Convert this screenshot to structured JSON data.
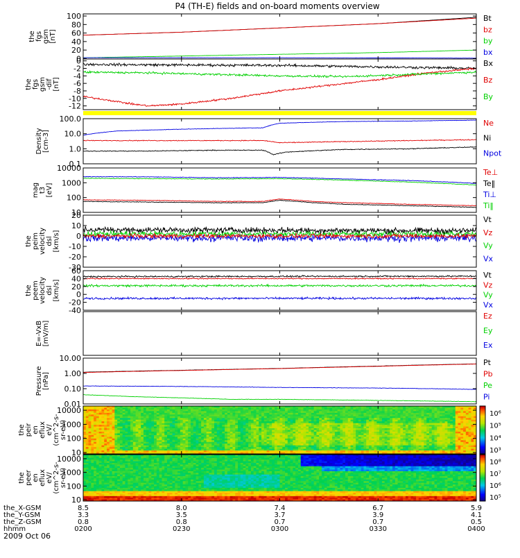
{
  "title": "P4 (TH-E) fields and on-board moments overview",
  "date_label": "2009 Oct 06",
  "colors": {
    "black": "#000000",
    "red": "#e00000",
    "green": "#00d000",
    "blue": "#0000e0",
    "yellow": "#ffff00",
    "frame": "#000000"
  },
  "chart_data": [
    {
      "type": "line",
      "id": "panel-fgs-gsm",
      "ylabel": [
        "the",
        "fgs",
        "gsm",
        "[nT]"
      ],
      "ylim": [
        -1,
        105
      ],
      "log": false,
      "yticks": [
        0,
        20,
        40,
        60,
        80,
        100
      ],
      "ytick_labels": [
        "0",
        "20",
        "40",
        "60",
        "80",
        "100"
      ],
      "legend": [
        {
          "label": "Bt",
          "color": "#000000"
        },
        {
          "label": "bz",
          "color": "#e00000"
        },
        {
          "label": "by",
          "color": "#00d000"
        },
        {
          "label": "bx",
          "color": "#0000e0"
        }
      ],
      "series": [
        {
          "color": "#000000",
          "x": [
            0,
            30,
            60,
            90,
            120
          ],
          "y": [
            55,
            62,
            72,
            82,
            97
          ],
          "noise": 0.2
        },
        {
          "color": "#e00000",
          "x": [
            0,
            30,
            60,
            90,
            120
          ],
          "y": [
            55,
            62,
            72,
            82,
            95
          ],
          "noise": 0.2
        },
        {
          "color": "#00d000",
          "x": [
            0,
            30,
            60,
            90,
            120
          ],
          "y": [
            2,
            6,
            10,
            14,
            20
          ],
          "noise": 0.3
        },
        {
          "color": "#0000e0",
          "x": [
            0,
            30,
            60,
            90,
            120
          ],
          "y": [
            2,
            2,
            2,
            1.5,
            1
          ],
          "noise": 0.2
        }
      ]
    },
    {
      "type": "line",
      "id": "panel-fgs-gsm-dif",
      "ylabel": [
        "the",
        "fgs",
        "gsm",
        "-dif",
        "[nT]"
      ],
      "ylim": [
        -13,
        0.5
      ],
      "log": false,
      "yticks": [
        0,
        -2,
        -4,
        -6,
        -8,
        -10,
        -12
      ],
      "ytick_labels": [
        "0",
        "-2",
        "-4",
        "-6",
        "-8",
        "-10",
        "-12"
      ],
      "legend": [
        {
          "label": "Bx",
          "color": "#000000"
        },
        {
          "label": "Bz",
          "color": "#e00000"
        },
        {
          "label": "By",
          "color": "#00d000"
        }
      ],
      "series": [
        {
          "color": "#000000",
          "x": [
            0,
            10,
            30,
            60,
            90,
            120
          ],
          "y": [
            -0.9,
            -1.0,
            -1.1,
            -1.2,
            -1.6,
            -2.0
          ],
          "noise": 0.5
        },
        {
          "color": "#e00000",
          "x": [
            0,
            8,
            15,
            20,
            30,
            45,
            60,
            75,
            90,
            105,
            120
          ],
          "y": [
            -9.5,
            -10.5,
            -11.5,
            -12.0,
            -11.5,
            -10.0,
            -8.0,
            -6.5,
            -5.0,
            -3.2,
            -2.0
          ],
          "noise": 0.35
        },
        {
          "color": "#00d000",
          "x": [
            0,
            20,
            40,
            60,
            80,
            100,
            120
          ],
          "y": [
            -3.0,
            -3.2,
            -3.6,
            -4.0,
            -4.2,
            -3.6,
            -3.0
          ],
          "noise": 0.4
        }
      ]
    },
    {
      "type": "line",
      "id": "panel-density",
      "ylabel": [
        "Density",
        "[cm-3]"
      ],
      "ylim": [
        0.1,
        100
      ],
      "log": true,
      "yticks": [
        0.1,
        1,
        10,
        100
      ],
      "ytick_labels": [
        "0.1",
        "1.0",
        "10.0",
        "100.0"
      ],
      "legend": [
        {
          "label": "Ne",
          "color": "#e00000"
        },
        {
          "label": "Ni",
          "color": "#000000"
        },
        {
          "label": "Npot",
          "color": "#0000e0"
        }
      ],
      "series": [
        {
          "color": "#0000e0",
          "x": [
            0,
            10,
            30,
            55,
            60,
            80,
            100,
            120
          ],
          "y": [
            8,
            15,
            20,
            25,
            50,
            65,
            70,
            80
          ],
          "noise": 0.02
        },
        {
          "color": "#e00000",
          "x": [
            0,
            20,
            40,
            55,
            60,
            80,
            100,
            120
          ],
          "y": [
            3.5,
            3.5,
            3.5,
            3.5,
            2.5,
            3.0,
            3.5,
            4.0
          ],
          "noise": 0.04
        },
        {
          "color": "#000000",
          "x": [
            0,
            20,
            40,
            55,
            58,
            62,
            80,
            100,
            120
          ],
          "y": [
            0.7,
            0.7,
            0.8,
            0.8,
            0.4,
            0.6,
            0.9,
            1.0,
            1.3
          ],
          "noise": 0.04
        }
      ]
    },
    {
      "type": "line",
      "id": "panel-temperature",
      "ylabel": [
        "mag",
        "t3",
        "[eV]"
      ],
      "ylim": [
        10,
        10000
      ],
      "log": true,
      "yticks": [
        10,
        100,
        1000,
        10000
      ],
      "ytick_labels": [
        "10",
        "100",
        "1000",
        "10000"
      ],
      "legend": [
        {
          "label": "Te⊥",
          "color": "#e00000"
        },
        {
          "label": "Te‖",
          "color": "#000000"
        },
        {
          "label": "Ti⊥",
          "color": "#0000e0"
        },
        {
          "label": "Ti‖",
          "color": "#00d000"
        }
      ],
      "series": [
        {
          "color": "#0000e0",
          "x": [
            0,
            20,
            40,
            60,
            80,
            100,
            120
          ],
          "y": [
            2600,
            2500,
            2200,
            2300,
            1800,
            1400,
            900
          ],
          "noise": 0.03
        },
        {
          "color": "#00d000",
          "x": [
            0,
            20,
            40,
            60,
            80,
            100,
            120
          ],
          "y": [
            2000,
            1900,
            1800,
            1900,
            1500,
            1100,
            700
          ],
          "noise": 0.03
        },
        {
          "color": "#e00000",
          "x": [
            0,
            20,
            40,
            55,
            60,
            70,
            80,
            100,
            120
          ],
          "y": [
            70,
            65,
            55,
            55,
            80,
            55,
            45,
            35,
            28
          ],
          "noise": 0.03
        },
        {
          "color": "#000000",
          "x": [
            0,
            20,
            40,
            55,
            60,
            70,
            80,
            100,
            120
          ],
          "y": [
            55,
            50,
            45,
            45,
            65,
            45,
            35,
            28,
            22
          ],
          "noise": 0.03
        }
      ]
    },
    {
      "type": "line",
      "id": "panel-peim-velocity",
      "ylabel": [
        "the",
        "peim",
        "velocity",
        "dsl",
        "[km/s]"
      ],
      "ylim": [
        -30,
        20
      ],
      "log": false,
      "yticks": [
        20,
        10,
        0,
        -10,
        -20,
        -30
      ],
      "ytick_labels": [
        "20",
        "10",
        "0",
        "-10",
        "-20",
        "-30"
      ],
      "legend": [
        {
          "label": "Vt",
          "color": "#000000"
        },
        {
          "label": "Vz",
          "color": "#e00000"
        },
        {
          "label": "Vy",
          "color": "#00d000"
        },
        {
          "label": "Vx",
          "color": "#0000e0"
        }
      ],
      "series": [
        {
          "color": "#0000e0",
          "x": [
            0,
            120
          ],
          "y": [
            -2,
            -2
          ],
          "noise": 5
        },
        {
          "color": "#00d000",
          "x": [
            0,
            120
          ],
          "y": [
            2,
            2
          ],
          "noise": 4
        },
        {
          "color": "#e00000",
          "x": [
            0,
            120
          ],
          "y": [
            0,
            0
          ],
          "noise": 3
        },
        {
          "color": "#000000",
          "x": [
            0,
            120
          ],
          "y": [
            6,
            5
          ],
          "noise": 4
        }
      ]
    },
    {
      "type": "line",
      "id": "panel-peem-velocity",
      "ylabel": [
        "the",
        "peem",
        "velocity",
        "dsl",
        "[km/s]"
      ],
      "ylim": [
        -40,
        60
      ],
      "log": false,
      "yticks": [
        60,
        40,
        20,
        0,
        -20,
        -40
      ],
      "ytick_labels": [
        "60",
        "40",
        "20",
        "0",
        "-20",
        "-40"
      ],
      "legend": [
        {
          "label": "Vt",
          "color": "#000000"
        },
        {
          "label": "Vz",
          "color": "#e00000"
        },
        {
          "label": "Vy",
          "color": "#00d000"
        },
        {
          "label": "Vx",
          "color": "#0000e0"
        }
      ],
      "series": [
        {
          "color": "#0000e0",
          "x": [
            0,
            120
          ],
          "y": [
            -10,
            -10
          ],
          "noise": 4
        },
        {
          "color": "#00d000",
          "x": [
            0,
            120
          ],
          "y": [
            22,
            22
          ],
          "noise": 4
        },
        {
          "color": "#e00000",
          "x": [
            0,
            120
          ],
          "y": [
            40,
            40
          ],
          "noise": 2
        },
        {
          "color": "#000000",
          "x": [
            0,
            120
          ],
          "y": [
            45,
            46
          ],
          "noise": 3
        }
      ]
    },
    {
      "type": "line",
      "id": "panel-e-vxb",
      "ylabel": [
        "E=-VxB",
        "[mV/m]"
      ],
      "ylim": [
        0,
        1
      ],
      "log": false,
      "yticks": [],
      "ytick_labels": [],
      "legend": [
        {
          "label": "Ez",
          "color": "#e00000"
        },
        {
          "label": "Ey",
          "color": "#00d000"
        },
        {
          "label": "Ex",
          "color": "#0000e0"
        }
      ],
      "series": []
    },
    {
      "type": "line",
      "id": "panel-pressure",
      "ylabel": [
        "Pressure",
        "[nPa]"
      ],
      "ylim": [
        0.01,
        10
      ],
      "log": true,
      "yticks": [
        0.01,
        0.1,
        1,
        10
      ],
      "ytick_labels": [
        "0.01",
        "0.10",
        "1.00",
        "10.00"
      ],
      "legend": [
        {
          "label": "Pt",
          "color": "#000000"
        },
        {
          "label": "Pb",
          "color": "#e00000"
        },
        {
          "label": "Pe",
          "color": "#00d000"
        },
        {
          "label": "Pi",
          "color": "#0000e0"
        }
      ],
      "series": [
        {
          "color": "#000000",
          "x": [
            0,
            30,
            60,
            90,
            120
          ],
          "y": [
            1.2,
            1.6,
            2.1,
            3.0,
            4.2
          ],
          "noise": 0.01
        },
        {
          "color": "#e00000",
          "x": [
            0,
            30,
            60,
            90,
            120
          ],
          "y": [
            1.15,
            1.55,
            2.05,
            2.9,
            4.1
          ],
          "noise": 0.01
        },
        {
          "color": "#0000e0",
          "x": [
            0,
            30,
            60,
            90,
            120
          ],
          "y": [
            0.15,
            0.14,
            0.12,
            0.11,
            0.09
          ],
          "noise": 0.02
        },
        {
          "color": "#00d000",
          "x": [
            0,
            15,
            30,
            45,
            60,
            90,
            120
          ],
          "y": [
            0.04,
            0.03,
            0.025,
            0.02,
            0.02,
            0.017,
            0.014
          ],
          "noise": 0.02
        }
      ]
    },
    {
      "type": "heatmap",
      "id": "panel-peir-eflux",
      "ylabel": [
        "the",
        "peir",
        "en",
        "eflux",
        "eV/",
        "(cm^2-s-",
        "sr-eV)"
      ],
      "ylim": [
        8,
        20000
      ],
      "log": true,
      "yticks": [
        10,
        100,
        1000,
        10000
      ],
      "ytick_labels": [
        "10",
        "100",
        "1000",
        "10000"
      ],
      "colorbar": {
        "ticks": [
          "10⁶",
          "10⁵",
          "10⁴",
          "10³"
        ]
      },
      "mode": "ion"
    },
    {
      "type": "heatmap",
      "id": "panel-peer-eflux",
      "ylabel": [
        "the",
        "peer",
        "en",
        "eflux",
        "eV/",
        "(cm^2-s-",
        "sr-eV)"
      ],
      "ylim": [
        8,
        20000
      ],
      "log": true,
      "yticks": [
        10,
        100,
        1000,
        10000
      ],
      "ytick_labels": [
        "10",
        "100",
        "1000",
        "10000"
      ],
      "colorbar": {
        "ticks": [
          "10⁸",
          "10⁷",
          "10⁶",
          "10⁵"
        ]
      },
      "mode": "electron"
    }
  ],
  "time_axis": {
    "row_labels": [
      "the_X-GSM",
      "the_Y-GSM",
      "the_Z-GSM",
      "hhmm"
    ],
    "columns": [
      {
        "t": 0,
        "values": [
          "8.5",
          "3.3",
          "0.8",
          "0200"
        ]
      },
      {
        "t": 30,
        "values": [
          "8.0",
          "3.5",
          "0.8",
          "0230"
        ]
      },
      {
        "t": 60,
        "values": [
          "7.4",
          "3.7",
          "0.7",
          "0300"
        ]
      },
      {
        "t": 90,
        "values": [
          "6.7",
          "3.9",
          "0.7",
          "0330"
        ]
      },
      {
        "t": 120,
        "values": [
          "5.9",
          "4.1",
          "0.5",
          "0400"
        ]
      }
    ]
  }
}
